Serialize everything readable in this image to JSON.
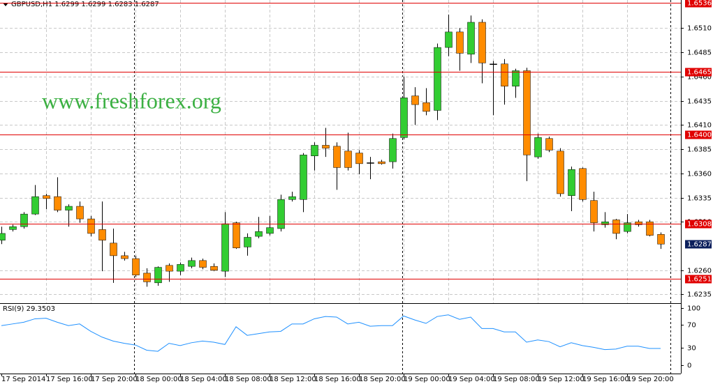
{
  "chart_data": {
    "type": "candlestick",
    "title": "GBPUSD,H1  1.6299 1.6299 1.6283 1.6287",
    "watermark": "www.freshforex.org",
    "categories": [
      "17 Sep 2014",
      null,
      null,
      null,
      "17 Sep 16:00",
      null,
      null,
      null,
      "17 Sep 20:00",
      null,
      null,
      null,
      "18 Sep 00:00",
      null,
      null,
      null,
      "18 Sep 04:00",
      null,
      null,
      null,
      "18 Sep 08:00",
      null,
      null,
      null,
      "18 Sep 12:00",
      null,
      null,
      null,
      "18 Sep 16:00",
      null,
      null,
      null,
      "18 Sep 20:00",
      null,
      null,
      null,
      "19 Sep 00:00",
      null,
      null,
      null,
      "19 Sep 04:00",
      null,
      null,
      null,
      "19 Sep 08:00",
      null,
      null,
      null,
      "19 Sep 12:00",
      null,
      null,
      null,
      "19 Sep 16:00",
      null,
      null,
      null,
      "19 Sep 20:00",
      null,
      null,
      null
    ],
    "open": [
      1.6291,
      1.6302,
      1.6305,
      1.6318,
      1.6337,
      1.6336,
      1.6322,
      1.6326,
      1.6313,
      1.6302,
      1.6288,
      1.6275,
      1.6272,
      1.6257,
      1.6247,
      1.6265,
      1.6259,
      1.6264,
      1.627,
      1.6264,
      1.6259,
      1.6309,
      1.6284,
      1.6295,
      1.6298,
      1.6303,
      1.6333,
      1.6333,
      1.6378,
      1.6389,
      1.6388,
      1.6383,
      1.6381,
      1.6371,
      1.6372,
      1.6372,
      1.6397,
      1.644,
      1.6433,
      1.6425,
      1.649,
      1.6506,
      1.6483,
      1.6516,
      1.6473,
      1.6473,
      1.645,
      1.6466,
      1.6377,
      1.6396,
      1.6383,
      1.6337,
      1.6365,
      1.6332,
      1.6307,
      1.6312,
      1.63,
      1.631,
      1.631,
      1.6297
    ],
    "high": [
      1.6305,
      1.6307,
      1.632,
      1.6348,
      1.6339,
      1.6356,
      1.6328,
      1.6331,
      1.6316,
      1.6331,
      1.6303,
      1.6279,
      1.6275,
      1.6262,
      1.6264,
      1.6267,
      1.6268,
      1.6273,
      1.6272,
      1.6267,
      1.632,
      1.631,
      1.6298,
      1.6315,
      1.6316,
      1.6338,
      1.6341,
      1.6381,
      1.6392,
      1.6407,
      1.6392,
      1.6402,
      1.6384,
      1.6377,
      1.6374,
      1.6401,
      1.646,
      1.6449,
      1.6448,
      1.6494,
      1.6524,
      1.651,
      1.6523,
      1.6519,
      1.6476,
      1.6478,
      1.6468,
      1.6469,
      1.6401,
      1.6398,
      1.6386,
      1.6367,
      1.6366,
      1.6341,
      1.632,
      1.6313,
      1.6318,
      1.6312,
      1.6312,
      1.6299
    ],
    "low": [
      1.6287,
      1.63,
      1.6303,
      1.6317,
      1.6323,
      1.632,
      1.6305,
      1.6309,
      1.6295,
      1.6259,
      1.6247,
      1.627,
      1.6253,
      1.6243,
      1.6244,
      1.6248,
      1.6255,
      1.6262,
      1.6261,
      1.6259,
      1.6253,
      1.6282,
      1.6275,
      1.6293,
      1.6296,
      1.63,
      1.6331,
      1.632,
      1.6363,
      1.6377,
      1.6343,
      1.6363,
      1.6359,
      1.6354,
      1.6369,
      1.6365,
      1.6395,
      1.641,
      1.642,
      1.6415,
      1.6481,
      1.6466,
      1.6474,
      1.6453,
      1.642,
      1.6431,
      1.6438,
      1.6352,
      1.6375,
      1.6382,
      1.6336,
      1.6321,
      1.6331,
      1.63,
      1.6304,
      1.6292,
      1.6298,
      1.6305,
      1.6295,
      1.6282
    ],
    "close": [
      1.6298,
      1.6305,
      1.6318,
      1.6336,
      1.6334,
      1.6322,
      1.6326,
      1.6313,
      1.6298,
      1.6291,
      1.6275,
      1.6272,
      1.6255,
      1.6248,
      1.6263,
      1.6259,
      1.6266,
      1.627,
      1.6263,
      1.626,
      1.6308,
      1.6283,
      1.6294,
      1.63,
      1.6304,
      1.6333,
      1.6336,
      1.6379,
      1.6389,
      1.6386,
      1.6366,
      1.6366,
      1.637,
      1.6371,
      1.637,
      1.6396,
      1.6438,
      1.6431,
      1.6424,
      1.649,
      1.6506,
      1.6484,
      1.6516,
      1.6474,
      1.6473,
      1.645,
      1.6466,
      1.6379,
      1.6397,
      1.6384,
      1.6339,
      1.6364,
      1.6333,
      1.6309,
      1.631,
      1.6298,
      1.6309,
      1.6307,
      1.6296,
      1.6287
    ],
    "up_color": "#32cd32",
    "down_color": "#ff8c00",
    "doji_color": "#000000",
    "ylim": [
      1.6226,
      1.6539
    ],
    "yticks": [
      {
        "value": 1.651,
        "label": "1.6510"
      },
      {
        "value": 1.6485,
        "label": "1.6485"
      },
      {
        "value": 1.646,
        "label": "1.6460"
      },
      {
        "value": 1.6435,
        "label": "1.6435"
      },
      {
        "value": 1.641,
        "label": "1.6410"
      },
      {
        "value": 1.6385,
        "label": "1.6385"
      },
      {
        "value": 1.636,
        "label": "1.6360"
      },
      {
        "value": 1.6335,
        "label": "1.6335"
      },
      {
        "value": 1.631,
        "label": "1.6310"
      },
      {
        "value": 1.626,
        "label": "1.6260"
      },
      {
        "value": 1.6235,
        "label": "1.6235"
      }
    ],
    "grid": true,
    "levels": [
      {
        "value": 1.6536,
        "label": "1.6536"
      },
      {
        "value": 1.6465,
        "label": "1.6465"
      },
      {
        "value": 1.64,
        "label": "1.6400"
      },
      {
        "value": 1.6308,
        "label": "1.6308"
      },
      {
        "value": 1.6251,
        "label": "1.6251"
      }
    ],
    "level_color": "#e00000",
    "current_price": {
      "value": 1.6287,
      "label": "1.6287"
    },
    "rsi": {
      "title": "RSI(9) 29.3503",
      "color": "#1e90ff",
      "values": [
        69,
        72,
        75,
        81,
        82,
        75,
        69,
        72,
        59,
        49,
        42,
        38,
        35,
        26,
        24,
        38,
        34,
        39,
        42,
        40,
        36,
        67,
        52,
        55,
        58,
        59,
        72,
        72,
        81,
        85,
        84,
        72,
        75,
        68,
        69,
        69,
        86,
        79,
        73,
        85,
        88,
        80,
        84,
        64,
        64,
        58,
        58,
        40,
        44,
        41,
        32,
        39,
        34,
        31,
        27,
        28,
        33,
        33,
        29,
        29
      ],
      "ylim": [
        -15,
        106
      ],
      "yticks": [
        0,
        30,
        70,
        100
      ]
    }
  }
}
